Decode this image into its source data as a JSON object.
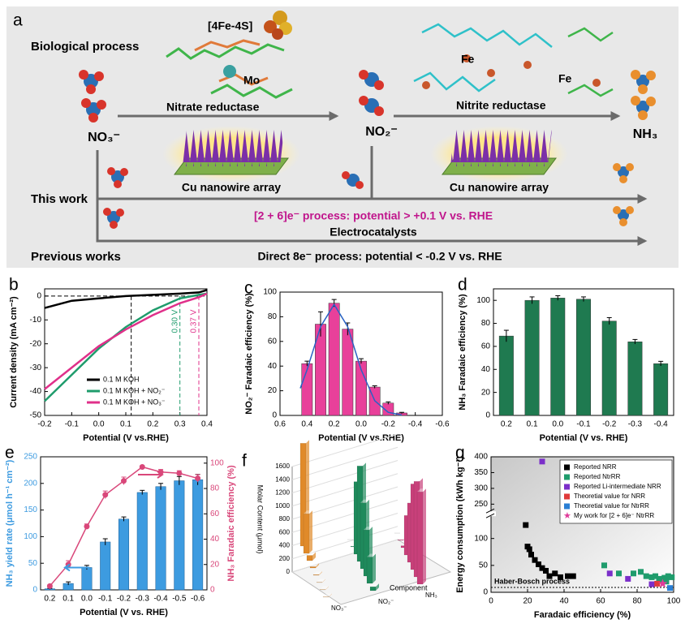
{
  "diagram": {
    "panel_label": "a",
    "biological_process": "Biological process",
    "cluster": "[4Fe-4S]",
    "mo": "Mo",
    "nitrate_reductase": "Nitrate reductase",
    "fe_left": "Fe",
    "fe_right": "Fe",
    "nitrite_reductase": "Nitrite reductase",
    "nitrate": "NO₃⁻",
    "nitrite": "NO₂⁻",
    "ammonia": "NH₃",
    "cu_left": "Cu nanowire array",
    "cu_right": "Cu nanowire array",
    "this_work": "This work",
    "this_work_process": "[2 + 6]e⁻ process: potential > +0.1 V vs. RHE",
    "electrocatalysts": "Electrocatalysts",
    "previous_works": "Previous works",
    "previous_process": "Direct 8e⁻ process: potential < -0.2 V vs. RHE"
  },
  "chart_data": [
    {
      "type": "line",
      "label": "b",
      "xlabel": "Potential (V vs.RHE)",
      "ylabel": "Current density (mA cm⁻²)",
      "x": [
        -0.2,
        -0.1,
        0,
        0.1,
        0.2,
        0.3,
        0.37,
        0.4
      ],
      "xlim": [
        -0.2,
        0.4
      ],
      "xticks": [
        -0.2,
        -0.1,
        {
          "value": 0,
          "label": "0.0"
        },
        0.1,
        0.2,
        0.3,
        0.4
      ],
      "ylim": [
        -50,
        3
      ],
      "yticks": [
        -50,
        -40,
        -30,
        -20,
        -10,
        0
      ],
      "series": [
        {
          "name": "0.1 M KOH",
          "color": "#000000",
          "values": [
            -5,
            -2,
            -1,
            0,
            0.5,
            1,
            1.5,
            2.5
          ]
        },
        {
          "name": "0.1 M KOH + NO₂⁻",
          "color": "#1f9c6c",
          "values": [
            -44,
            -33,
            -22,
            -13,
            -6,
            -1,
            0.5,
            1
          ]
        },
        {
          "name": "0.1 M KOH + NO₃⁻",
          "color": "#e0308a",
          "values": [
            -39,
            -30,
            -21,
            -14,
            -8,
            -3,
            -0.5,
            1
          ]
        }
      ],
      "guide_lines": [
        {
          "x": 0.12,
          "color": "#000000"
        }
      ],
      "annotations": [
        {
          "text": "0.30 V",
          "x": 0.3,
          "color": "#1f9c6c"
        },
        {
          "text": "0.37 V",
          "x": 0.37,
          "color": "#e0308a"
        }
      ],
      "legend": "lower right"
    },
    {
      "type": "bar",
      "label": "c",
      "xlabel": "Potential (V vs.RHE)",
      "ylabel": "NO₂⁻ Faradaic efficiency (%)",
      "x": [
        0.4,
        0.3,
        0.2,
        0.1,
        0,
        -0.1,
        -0.2,
        -0.3
      ],
      "values": [
        42,
        74,
        91,
        70,
        44,
        23,
        10,
        2
      ],
      "errors": [
        2,
        10,
        3,
        5,
        2,
        1,
        1,
        0.5
      ],
      "color": "#e8409a",
      "xlim": [
        0.6,
        -0.6
      ],
      "xticks": [
        0.6,
        0.4,
        0.2,
        {
          "value": 0,
          "label": "0.0"
        },
        -0.2,
        -0.4,
        -0.6
      ],
      "ylim": [
        0,
        100
      ],
      "yticks": [
        0,
        20,
        40,
        60,
        80,
        100
      ],
      "fit": {
        "color": "#2a62c4",
        "x": [
          0.45,
          0.4,
          0.3,
          0.2,
          0.1,
          0,
          -0.1,
          -0.2,
          -0.3
        ],
        "values": [
          22,
          37,
          72,
          90,
          72,
          37,
          12,
          2.5,
          0.3
        ]
      }
    },
    {
      "type": "bar",
      "label": "d",
      "xlabel": "Potential (V vs. RHE)",
      "ylabel": "NH₃ Faradaic efficiency (%)",
      "categories": [
        "0.2",
        "0.1",
        "0.0",
        "-0.1",
        "-0.2",
        "-0.3",
        "-0.4"
      ],
      "values": [
        69,
        100,
        102,
        101,
        82,
        64,
        45
      ],
      "errors": [
        5,
        3,
        2,
        2,
        3,
        2,
        2
      ],
      "color": "#1f7a50",
      "ylim": [
        0,
        110
      ],
      "yticks": [
        0,
        20,
        40,
        60,
        80,
        100
      ]
    },
    {
      "type": "bar_line",
      "label": "e",
      "xlabel": "Potential (V vs. RHE)",
      "ylabel": "NH₃ yield rate (μmol h⁻¹ cm⁻²)",
      "y2label": "NH₃ Faradaic efficiency (%)",
      "categories": [
        "0.2",
        "0.1",
        "0.0",
        "-0.1",
        "-0.2",
        "-0.3",
        "-0.4",
        "-0.5",
        "-0.6"
      ],
      "series": [
        {
          "color": "#3d9be0",
          "values": [
            2,
            12,
            42,
            90,
            133,
            183,
            194,
            205,
            207
          ],
          "errors": [
            1,
            3,
            4,
            6,
            4,
            4,
            6,
            8,
            10
          ]
        },
        {
          "color": "#d9477a",
          "axis": "y2",
          "values": [
            3,
            20,
            50,
            75,
            86,
            97,
            93,
            92,
            88
          ],
          "errors": [
            1,
            3,
            2,
            3,
            3,
            1,
            2,
            2,
            3
          ]
        }
      ],
      "ylim": [
        0,
        250
      ],
      "yticks": [
        0,
        50,
        100,
        150,
        200,
        250
      ],
      "y2lim": [
        0,
        105
      ],
      "y2ticks": [
        0,
        20,
        40,
        60,
        80,
        100
      ]
    },
    {
      "type": "bar3d",
      "label": "f",
      "ylabel": "Molar Content (μmol)",
      "xlabel": "Component",
      "categories": [
        null,
        null,
        null,
        null,
        null,
        null,
        null,
        null
      ],
      "series": [
        {
          "name": "NO₃⁻",
          "color": "#e08a2a",
          "values": [
            1560,
            600,
            80,
            20,
            10,
            5,
            5,
            5
          ]
        },
        {
          "name": "NO₂⁻",
          "color": "#1f8a5c",
          "values": [
            0,
            10,
            1100,
            1450,
            1000,
            700,
            400,
            60
          ]
        },
        {
          "name": "NH₃",
          "color": "#c8407a",
          "values": [
            0,
            10,
            30,
            600,
            900,
            1300,
            1450,
            1400
          ]
        }
      ],
      "ylim": [
        0,
        1600
      ],
      "yticks": [
        0,
        200,
        400,
        600,
        800,
        1000,
        1200,
        1400,
        1600
      ]
    },
    {
      "type": "scatter",
      "label": "g",
      "xlabel": "Faradaic efficiency (%)",
      "ylabel": "Energy consumption (kWh kg⁻¹)",
      "xlim": [
        0,
        100
      ],
      "xticks": [
        0,
        20,
        40,
        60,
        80,
        100
      ],
      "ylim": [
        0,
        400
      ],
      "yticks": [
        0,
        50,
        100,
        250,
        300,
        350,
        400
      ],
      "ybreak": [
        140,
        230
      ],
      "reference": {
        "text": "Haber-Bosch process",
        "value": 9
      },
      "series": [
        {
          "name": "Reported NRR",
          "color": "#000000",
          "marker": "square",
          "x": [
            19,
            20,
            21,
            22,
            24,
            26,
            28,
            30,
            32,
            35,
            38,
            42,
            45
          ],
          "values": [
            125,
            85,
            80,
            70,
            60,
            52,
            45,
            40,
            30,
            35,
            28,
            30,
            30
          ]
        },
        {
          "name": "Reported NtrRR",
          "color": "#1f9c6c",
          "marker": "square",
          "x": [
            62,
            70,
            78,
            82,
            85,
            88,
            90,
            92,
            93,
            95,
            96,
            97,
            99
          ],
          "values": [
            50,
            35,
            35,
            38,
            30,
            28,
            30,
            25,
            22,
            27,
            20,
            30,
            28
          ]
        },
        {
          "name": "Reported Li-intermediate NRR",
          "color": "#7b2fc9",
          "marker": "square",
          "x": [
            28,
            44,
            65,
            75,
            88
          ],
          "values": [
            385,
            270,
            35,
            25,
            15
          ]
        },
        {
          "name": "Theoretial value for NRR",
          "color": "#e03a3a",
          "marker": "square",
          "x": [
            91
          ],
          "values": [
            16
          ]
        },
        {
          "name": "Theoretial value for NtrRR",
          "color": "#2a7fd4",
          "marker": "square",
          "x": [
            98
          ],
          "values": [
            8
          ]
        },
        {
          "name": "My work for [2 + 6]e⁻ NtrRR",
          "color": "#e03a9a",
          "marker": "star",
          "x": [
            94
          ],
          "values": [
            16
          ]
        }
      ],
      "legend": "upper right"
    }
  ]
}
